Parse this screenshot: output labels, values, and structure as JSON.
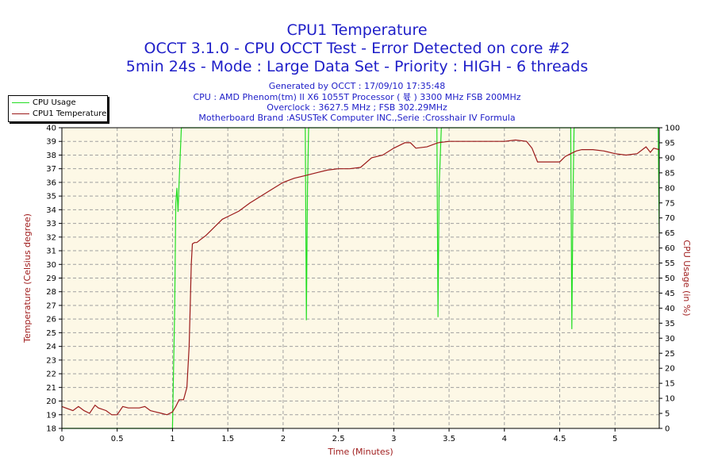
{
  "title_lines": [
    "CPU1 Temperature",
    "OCCT 3.1.0 - CPU OCCT Test - Error Detected on core #2",
    "5min 24s - Mode : Large Data Set - Priority : HIGH - 6 threads"
  ],
  "info_lines": [
    "Generated by OCCT : 17/09/10 17:35:48",
    "CPU : AMD Phenom(tm) II X6 1055T Processor ( 뷳  ) 3300 MHz FSB 200MHz",
    "Overclock : 3627.5 MHz ; FSB 302.29MHz",
    "Motherboard Brand :ASUSTeK Computer INC.,Serie :Crosshair IV Formula"
  ],
  "colors": {
    "title": "#1e1ec8",
    "axis_title": "#a01e1e",
    "plot_bg": "#fdf8e6",
    "grid": "#a0a0a0",
    "temperature": "#9b1a1a",
    "usage": "#22dd22"
  },
  "chart_data": {
    "type": "line",
    "title": "CPU1 Temperature",
    "xlabel": "Time (Minutes)",
    "ylabel_left": "Temperature (Celsius degree)",
    "ylabel_right": "CPU Usage (in %)",
    "xlim": [
      0,
      5.4
    ],
    "ylim_left": [
      18,
      40
    ],
    "ylim_right": [
      0,
      100
    ],
    "x_ticks": [
      0,
      0.5,
      1,
      1.5,
      2,
      2.5,
      3,
      3.5,
      4,
      4.5,
      5
    ],
    "x_tick_labels": [
      "0",
      "0.5",
      "1",
      "1.5",
      "2",
      "2.5",
      "3",
      "3.5",
      "4",
      "4.5",
      "5"
    ],
    "y_left_ticks": [
      18,
      19,
      20,
      21,
      22,
      23,
      24,
      25,
      26,
      27,
      28,
      29,
      30,
      31,
      32,
      33,
      34,
      35,
      36,
      37,
      38,
      39,
      40
    ],
    "y_left_tick_labels": [
      "18",
      "19",
      "20",
      "21",
      "22",
      "23",
      "24",
      "25",
      "26",
      "27",
      "28",
      "29",
      "30",
      "31",
      "32",
      "33",
      "34",
      "35",
      "36",
      "37",
      "38",
      "39",
      "40"
    ],
    "y_right_ticks": [
      0,
      5,
      10,
      15,
      20,
      25,
      30,
      35,
      40,
      45,
      50,
      55,
      60,
      65,
      70,
      75,
      80,
      85,
      90,
      95,
      100
    ],
    "y_right_tick_labels": [
      "0",
      "5",
      "10",
      "15",
      "20",
      "25",
      "30",
      "35",
      "40",
      "45",
      "50",
      "55",
      "60",
      "65",
      "70",
      "75",
      "80",
      "85",
      "90",
      "95",
      "100"
    ],
    "grid": true,
    "legend_position": "top-left",
    "series": [
      {
        "name": "CPU Usage",
        "axis": "right",
        "x": [
          0,
          0.98,
          1.0,
          1.02,
          1.03,
          1.04,
          1.05,
          1.06,
          1.08,
          1.1,
          2.2,
          2.21,
          2.22,
          2.23,
          2.25,
          3.39,
          3.4,
          3.41,
          3.43,
          4.6,
          4.61,
          4.62,
          4.63,
          4.65,
          5.39,
          5.4
        ],
        "values": [
          0,
          0,
          0,
          40,
          75,
          80,
          72,
          82,
          100,
          100,
          100,
          36,
          80,
          100,
          100,
          100,
          37,
          80,
          100,
          100,
          33,
          75,
          100,
          100,
          100,
          65
        ]
      },
      {
        "name": "CPU1 Temperature",
        "axis": "left",
        "x": [
          0,
          0.1,
          0.15,
          0.2,
          0.25,
          0.3,
          0.33,
          0.4,
          0.45,
          0.5,
          0.55,
          0.6,
          0.65,
          0.7,
          0.75,
          0.8,
          0.85,
          0.9,
          0.95,
          1.0,
          1.03,
          1.06,
          1.1,
          1.13,
          1.15,
          1.16,
          1.17,
          1.18,
          1.2,
          1.22,
          1.25,
          1.3,
          1.35,
          1.4,
          1.45,
          1.5,
          1.6,
          1.7,
          1.8,
          1.9,
          2.0,
          2.1,
          2.2,
          2.3,
          2.4,
          2.5,
          2.6,
          2.7,
          2.8,
          2.9,
          3.0,
          3.1,
          3.15,
          3.2,
          3.3,
          3.4,
          3.5,
          3.6,
          3.7,
          3.8,
          3.9,
          4.0,
          4.1,
          4.2,
          4.25,
          4.3,
          4.4,
          4.5,
          4.55,
          4.6,
          4.65,
          4.7,
          4.8,
          4.9,
          5.0,
          5.1,
          5.2,
          5.28,
          5.32,
          5.35,
          5.4
        ],
        "values": [
          19.6,
          19.3,
          19.6,
          19.3,
          19.1,
          19.7,
          19.5,
          19.3,
          19.0,
          19.0,
          19.6,
          19.5,
          19.5,
          19.5,
          19.6,
          19.3,
          19.2,
          19.1,
          19.0,
          19.2,
          19.6,
          20.1,
          20.1,
          21.0,
          24.0,
          27.0,
          30.0,
          31.5,
          31.6,
          31.6,
          31.8,
          32.1,
          32.5,
          32.9,
          33.3,
          33.5,
          33.9,
          34.5,
          35.0,
          35.5,
          36.0,
          36.3,
          36.5,
          36.7,
          36.9,
          37.0,
          37.0,
          37.1,
          37.8,
          38.0,
          38.5,
          38.9,
          38.9,
          38.5,
          38.6,
          38.9,
          39.0,
          39.0,
          39.0,
          39.0,
          39.0,
          39.0,
          39.1,
          39.0,
          38.5,
          37.5,
          37.5,
          37.5,
          37.9,
          38.1,
          38.3,
          38.4,
          38.4,
          38.3,
          38.1,
          38.0,
          38.1,
          38.6,
          38.2,
          38.5,
          38.4
        ]
      }
    ]
  }
}
